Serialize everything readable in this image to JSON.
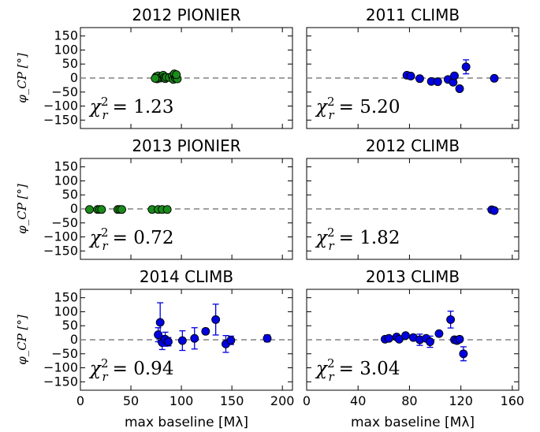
{
  "chart_data": [
    {
      "type": "scatter",
      "title": "2012 PIONIER",
      "ylabel": "φ_CP [°]",
      "xlim": [
        0,
        210
      ],
      "ylim": [
        -180,
        180
      ],
      "yticks": [
        150,
        100,
        50,
        0,
        -50,
        -100,
        -150
      ],
      "marker_color": "#1a8c1a",
      "annotation": "χ²ᵣ = 1.23",
      "chi_value": "= 1.23",
      "points": [
        {
          "x": 75,
          "y": 5,
          "err": 0
        },
        {
          "x": 76,
          "y": -3,
          "err": 0
        },
        {
          "x": 77,
          "y": 8,
          "err": 0
        },
        {
          "x": 79,
          "y": 0,
          "err": 0
        },
        {
          "x": 80,
          "y": 4,
          "err": 0
        },
        {
          "x": 82,
          "y": 10,
          "err": 0
        },
        {
          "x": 83,
          "y": 2,
          "err": 0
        },
        {
          "x": 84,
          "y": -2,
          "err": 0
        },
        {
          "x": 74,
          "y": -1,
          "err": 0
        },
        {
          "x": 85,
          "y": 3,
          "err": 0
        },
        {
          "x": 88,
          "y": 2,
          "err": 0
        },
        {
          "x": 91,
          "y": 7,
          "err": 0
        },
        {
          "x": 92,
          "y": -5,
          "err": 0
        },
        {
          "x": 93,
          "y": 15,
          "err": 0
        },
        {
          "x": 94,
          "y": 0,
          "err": 0
        },
        {
          "x": 95,
          "y": 5,
          "err": 0
        },
        {
          "x": 96,
          "y": -3,
          "err": 0
        },
        {
          "x": 95,
          "y": 12,
          "err": 0
        }
      ]
    },
    {
      "type": "scatter",
      "title": "2011 CLIMB",
      "ylabel": "",
      "xlim": [
        0,
        165
      ],
      "ylim": [
        -180,
        180
      ],
      "yticks": [],
      "marker_color": "#0000e0",
      "annotation": "χ²ᵣ = 5.20",
      "chi_value": "= 5.20",
      "points": [
        {
          "x": 78,
          "y": 10,
          "err": 0
        },
        {
          "x": 81,
          "y": 7,
          "err": 0
        },
        {
          "x": 88,
          "y": -2,
          "err": 0
        },
        {
          "x": 97,
          "y": -12,
          "err": 0
        },
        {
          "x": 102,
          "y": -13,
          "err": 0
        },
        {
          "x": 110,
          "y": -5,
          "err": 0
        },
        {
          "x": 114,
          "y": -15,
          "err": 0
        },
        {
          "x": 115,
          "y": 8,
          "err": 0
        },
        {
          "x": 119,
          "y": -38,
          "err": 0
        },
        {
          "x": 124,
          "y": 40,
          "err": 25
        },
        {
          "x": 146,
          "y": -1,
          "err": 0
        }
      ]
    },
    {
      "type": "scatter",
      "title": "2013 PIONIER",
      "ylabel": "φ_CP [°]",
      "xlim": [
        0,
        210
      ],
      "ylim": [
        -180,
        180
      ],
      "yticks": [
        150,
        100,
        50,
        0,
        -50,
        -100,
        -150
      ],
      "marker_color": "#1a8c1a",
      "annotation": "χ²ᵣ = 0.72",
      "chi_value": "= 0.72",
      "points": [
        {
          "x": 9,
          "y": -2,
          "err": 0
        },
        {
          "x": 17,
          "y": -2,
          "err": 0
        },
        {
          "x": 19,
          "y": -2,
          "err": 0
        },
        {
          "x": 21,
          "y": -2,
          "err": 0
        },
        {
          "x": 37,
          "y": -2,
          "err": 0
        },
        {
          "x": 39,
          "y": -2,
          "err": 0
        },
        {
          "x": 41,
          "y": -2,
          "err": 0
        },
        {
          "x": 71,
          "y": -2,
          "err": 0
        },
        {
          "x": 77,
          "y": -2,
          "err": 0
        },
        {
          "x": 81,
          "y": -2,
          "err": 0
        },
        {
          "x": 86,
          "y": -2,
          "err": 0
        }
      ]
    },
    {
      "type": "scatter",
      "title": "2012 CLIMB",
      "ylabel": "",
      "xlim": [
        0,
        165
      ],
      "ylim": [
        -180,
        180
      ],
      "yticks": [],
      "marker_color": "#0000e0",
      "annotation": "χ²ᵣ = 1.82",
      "chi_value": "= 1.82",
      "points": [
        {
          "x": 144,
          "y": -3,
          "err": 0
        },
        {
          "x": 146,
          "y": -6,
          "err": 0
        }
      ]
    },
    {
      "type": "scatter",
      "title": "2014 CLIMB",
      "ylabel": "φ_CP [°]",
      "xlabel": "max baseline [Mλ]",
      "xlim": [
        0,
        210
      ],
      "ylim": [
        -180,
        180
      ],
      "xticks": [
        0,
        50,
        100,
        150,
        200
      ],
      "yticks": [
        150,
        100,
        50,
        0,
        -50,
        -100,
        -150
      ],
      "marker_color": "#0000e0",
      "annotation": "χ²ᵣ = 0.94",
      "chi_value": "= 0.94",
      "points": [
        {
          "x": 77,
          "y": 18,
          "err": 25
        },
        {
          "x": 79,
          "y": 62,
          "err": 70
        },
        {
          "x": 81,
          "y": -10,
          "err": 25
        },
        {
          "x": 84,
          "y": 2,
          "err": 25
        },
        {
          "x": 87,
          "y": -7,
          "err": 15
        },
        {
          "x": 101,
          "y": -3,
          "err": 35
        },
        {
          "x": 113,
          "y": 5,
          "err": 38
        },
        {
          "x": 124,
          "y": 30,
          "err": 10
        },
        {
          "x": 134,
          "y": 72,
          "err": 55
        },
        {
          "x": 144,
          "y": -15,
          "err": 30
        },
        {
          "x": 149,
          "y": -2,
          "err": 15
        },
        {
          "x": 185,
          "y": 5,
          "err": 12
        }
      ]
    },
    {
      "type": "scatter",
      "title": "2013 CLIMB",
      "ylabel": "",
      "xlabel": "max baseline [Mλ]",
      "xlim": [
        0,
        165
      ],
      "ylim": [
        -180,
        180
      ],
      "xticks": [
        0,
        40,
        80,
        120,
        160
      ],
      "yticks": [],
      "marker_color": "#0000e0",
      "annotation": "χ²ᵣ = 3.04",
      "chi_value": "= 3.04",
      "points": [
        {
          "x": 61,
          "y": 2,
          "err": 0
        },
        {
          "x": 64,
          "y": 5,
          "err": 0
        },
        {
          "x": 70,
          "y": 10,
          "err": 0
        },
        {
          "x": 72,
          "y": 2,
          "err": 0
        },
        {
          "x": 77,
          "y": 15,
          "err": 0
        },
        {
          "x": 83,
          "y": 8,
          "err": 0
        },
        {
          "x": 88,
          "y": 0,
          "err": 20
        },
        {
          "x": 93,
          "y": 5,
          "err": 0
        },
        {
          "x": 96,
          "y": -7,
          "err": 20
        },
        {
          "x": 103,
          "y": 22,
          "err": 0
        },
        {
          "x": 112,
          "y": 72,
          "err": 30
        },
        {
          "x": 115,
          "y": 0,
          "err": 10
        },
        {
          "x": 117,
          "y": -3,
          "err": 0
        },
        {
          "x": 119,
          "y": 2,
          "err": 0
        },
        {
          "x": 122,
          "y": -50,
          "err": 25
        }
      ]
    }
  ]
}
